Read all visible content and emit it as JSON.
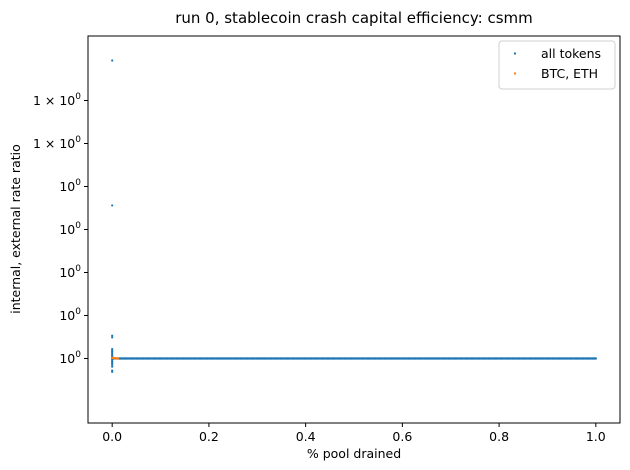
{
  "chart_data": {
    "type": "scatter",
    "title": "run 0, stablecoin crash capital efficiency: csmm",
    "xlabel": "% pool drained",
    "ylabel": "internal, external rate ratio",
    "xlim": [
      -0.05,
      1.05
    ],
    "ylim": [
      0.985,
      1.075
    ],
    "x_ticks": [
      {
        "value": 0.0,
        "label": "0.0"
      },
      {
        "value": 0.2,
        "label": "0.2"
      },
      {
        "value": 0.4,
        "label": "0.4"
      },
      {
        "value": 0.6,
        "label": "0.6"
      },
      {
        "value": 0.8,
        "label": "0.8"
      },
      {
        "value": 1.0,
        "label": "1.0"
      }
    ],
    "y_ticks": [
      {
        "value": 1.0,
        "base": "10",
        "exp": "0"
      },
      {
        "value": 1.01,
        "base": "10",
        "exp": "0"
      },
      {
        "value": 1.02,
        "base": "10",
        "exp": "0"
      },
      {
        "value": 1.03,
        "base": "10",
        "exp": "0"
      },
      {
        "value": 1.04,
        "base": "10",
        "exp": "0"
      },
      {
        "value": 1.05,
        "base": "1 × 10",
        "exp": "0"
      },
      {
        "value": 1.06,
        "base": "1 × 10",
        "exp": "0"
      }
    ],
    "legend_position": "top-right",
    "series": [
      {
        "name": "all tokens",
        "color": "#1f77b4",
        "outliers": [
          {
            "x": 0.0,
            "y": 1.0693
          },
          {
            "x": 0.0,
            "y": 1.0356
          },
          {
            "x": 0.0,
            "y": 1.0053
          },
          {
            "x": 0.0,
            "y": 1.0049
          },
          {
            "x": 0.0,
            "y": 1.0022
          },
          {
            "x": 0.0,
            "y": 1.0019
          },
          {
            "x": 0.0,
            "y": 1.0016
          },
          {
            "x": 0.0,
            "y": 1.0013
          },
          {
            "x": 0.0,
            "y": 1.001
          },
          {
            "x": 0.0,
            "y": 1.0007
          },
          {
            "x": 0.0,
            "y": 1.0004
          },
          {
            "x": 0.0,
            "y": 0.9997
          },
          {
            "x": 0.0,
            "y": 0.9994
          },
          {
            "x": 0.0,
            "y": 0.9991
          },
          {
            "x": 0.0,
            "y": 0.9988
          },
          {
            "x": 0.0,
            "y": 0.9985
          },
          {
            "x": 0.0,
            "y": 0.9981
          },
          {
            "x": 0.0,
            "y": 0.9972
          },
          {
            "x": 0.0,
            "y": 0.9969
          }
        ],
        "band": {
          "x_start": 0.0,
          "x_end": 1.0,
          "y": 1.0,
          "count": 400
        }
      },
      {
        "name": "BTC, ETH",
        "color": "#ff7f0e",
        "points": [
          {
            "x": 0.0,
            "y": 1.0001
          },
          {
            "x": 0.002,
            "y": 1.0002
          },
          {
            "x": 0.004,
            "y": 1.0001
          },
          {
            "x": 0.006,
            "y": 1.0
          },
          {
            "x": 0.008,
            "y": 1.0001
          },
          {
            "x": 0.01,
            "y": 1.0
          },
          {
            "x": 0.012,
            "y": 1.0
          }
        ]
      }
    ]
  }
}
